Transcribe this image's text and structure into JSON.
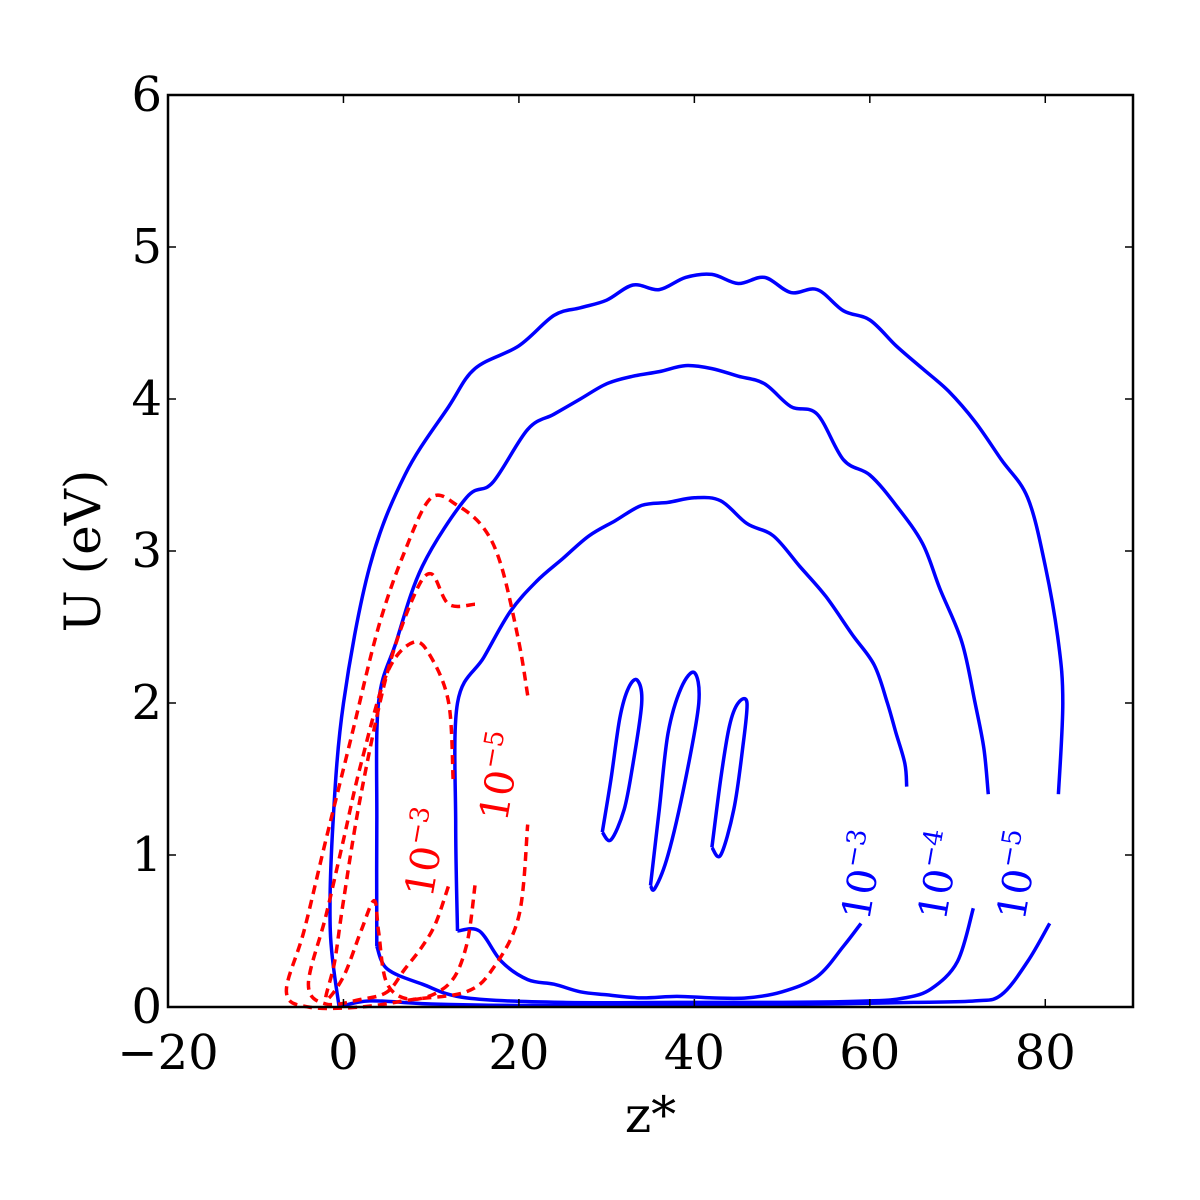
{
  "chart_data": {
    "type": "contour",
    "xlabel": "z*",
    "ylabel": "U (eV)",
    "xlim": [
      -20,
      90
    ],
    "ylim": [
      0,
      6
    ],
    "x_ticks": [
      -20,
      0,
      20,
      40,
      60,
      80
    ],
    "y_ticks": [
      0,
      1,
      2,
      3,
      4,
      5,
      6
    ],
    "x_tick_labels": [
      "−20",
      "0",
      "20",
      "40",
      "60",
      "80"
    ],
    "y_tick_labels": [
      "0",
      "1",
      "2",
      "3",
      "4",
      "5",
      "6"
    ],
    "colors": {
      "solid": "#0000ff",
      "dashed": "#ff0000"
    },
    "grid": false,
    "series": [
      {
        "name": "10^-5",
        "style": "solid",
        "color": "#0000ff",
        "label": {
          "base": "10",
          "exp": "−5",
          "x": 78.5,
          "y": 0.85
        },
        "points": [
          [
            -0.5,
            0
          ],
          [
            -1.5,
            0.5
          ],
          [
            -1.2,
            1.2
          ],
          [
            0,
            2
          ],
          [
            3,
            2.9
          ],
          [
            7,
            3.5
          ],
          [
            12,
            3.95
          ],
          [
            15,
            4.2
          ],
          [
            20,
            4.35
          ],
          [
            24,
            4.55
          ],
          [
            27,
            4.6
          ],
          [
            30,
            4.65
          ],
          [
            33,
            4.75
          ],
          [
            36,
            4.72
          ],
          [
            39,
            4.8
          ],
          [
            42,
            4.82
          ],
          [
            45,
            4.76
          ],
          [
            48,
            4.8
          ],
          [
            51,
            4.7
          ],
          [
            54,
            4.72
          ],
          [
            57,
            4.58
          ],
          [
            60,
            4.52
          ],
          [
            63,
            4.35
          ],
          [
            66,
            4.2
          ],
          [
            69,
            4.05
          ],
          [
            72,
            3.85
          ],
          [
            75,
            3.6
          ],
          [
            78,
            3.35
          ],
          [
            80,
            2.9
          ],
          [
            81.5,
            2.4
          ],
          [
            82,
            2
          ],
          [
            81.5,
            1.4
          ]
        ]
      },
      {
        "name": "10^-5 (lower)",
        "style": "solid",
        "color": "#0000ff",
        "points": [
          [
            80.5,
            0.55
          ],
          [
            78,
            0.3
          ],
          [
            75,
            0.08
          ],
          [
            72,
            0.04
          ],
          [
            65,
            0.03
          ],
          [
            55,
            0.02
          ],
          [
            40,
            0.01
          ],
          [
            20,
            0.01
          ],
          [
            10,
            0.02
          ],
          [
            3,
            0.04
          ],
          [
            -0.5,
            0
          ]
        ]
      },
      {
        "name": "10^-4",
        "style": "solid",
        "color": "#0000ff",
        "label": {
          "base": "10",
          "exp": "−4",
          "x": 69.5,
          "y": 0.85
        },
        "points": [
          [
            3.8,
            0.4
          ],
          [
            3.8,
            1.2
          ],
          [
            4,
            2
          ],
          [
            6,
            2.4
          ],
          [
            9,
            2.9
          ],
          [
            14,
            3.35
          ],
          [
            17,
            3.45
          ],
          [
            21,
            3.8
          ],
          [
            24,
            3.9
          ],
          [
            27,
            4
          ],
          [
            30,
            4.1
          ],
          [
            33,
            4.15
          ],
          [
            36,
            4.18
          ],
          [
            39,
            4.22
          ],
          [
            42,
            4.2
          ],
          [
            45,
            4.15
          ],
          [
            48,
            4.1
          ],
          [
            51,
            3.95
          ],
          [
            54,
            3.9
          ],
          [
            57,
            3.6
          ],
          [
            60,
            3.5
          ],
          [
            63,
            3.3
          ],
          [
            66,
            3.05
          ],
          [
            68,
            2.75
          ],
          [
            70.5,
            2.4
          ],
          [
            72,
            2
          ],
          [
            73,
            1.7
          ],
          [
            73.5,
            1.4
          ]
        ]
      },
      {
        "name": "10^-4 (lower)",
        "style": "solid",
        "color": "#0000ff",
        "points": [
          [
            71.8,
            0.65
          ],
          [
            70,
            0.3
          ],
          [
            67,
            0.12
          ],
          [
            64,
            0.06
          ],
          [
            60,
            0.04
          ],
          [
            50,
            0.03
          ],
          [
            38,
            0.03
          ],
          [
            25,
            0.03
          ],
          [
            14,
            0.06
          ],
          [
            9,
            0.15
          ],
          [
            5,
            0.25
          ],
          [
            3.8,
            0.4
          ]
        ]
      },
      {
        "name": "10^-3",
        "style": "solid",
        "color": "#0000ff",
        "label": {
          "base": "10",
          "exp": "−3",
          "x": 60.8,
          "y": 0.85
        },
        "points": [
          [
            13,
            0.5
          ],
          [
            12.8,
            1.2
          ],
          [
            13,
            2
          ],
          [
            16,
            2.3
          ],
          [
            19,
            2.6
          ],
          [
            22,
            2.8
          ],
          [
            25,
            2.95
          ],
          [
            28,
            3.1
          ],
          [
            31,
            3.2
          ],
          [
            34,
            3.3
          ],
          [
            37,
            3.32
          ],
          [
            40,
            3.35
          ],
          [
            43,
            3.33
          ],
          [
            46,
            3.18
          ],
          [
            49,
            3.1
          ],
          [
            52,
            2.9
          ],
          [
            55,
            2.7
          ],
          [
            58,
            2.45
          ],
          [
            60.5,
            2.25
          ],
          [
            62,
            2
          ],
          [
            63,
            1.8
          ],
          [
            64,
            1.6
          ],
          [
            64.2,
            1.45
          ]
        ]
      },
      {
        "name": "10^-3 (lower)",
        "style": "solid",
        "color": "#0000ff",
        "points": [
          [
            59,
            0.55
          ],
          [
            57,
            0.4
          ],
          [
            54,
            0.2
          ],
          [
            50,
            0.1
          ],
          [
            46,
            0.06
          ],
          [
            42,
            0.06
          ],
          [
            38,
            0.07
          ],
          [
            34,
            0.06
          ],
          [
            30,
            0.08
          ],
          [
            27,
            0.1
          ],
          [
            24,
            0.15
          ],
          [
            21,
            0.18
          ],
          [
            18,
            0.3
          ],
          [
            15.5,
            0.5
          ],
          [
            13,
            0.5
          ]
        ]
      },
      {
        "name": "inner-1",
        "style": "solid",
        "color": "#0000ff",
        "points": [
          [
            29.5,
            1.15
          ],
          [
            30.5,
            1.5
          ],
          [
            31.5,
            1.9
          ],
          [
            32.5,
            2.1
          ],
          [
            33.5,
            2.15
          ],
          [
            34,
            2
          ],
          [
            33,
            1.6
          ],
          [
            32,
            1.3
          ],
          [
            30.5,
            1.1
          ],
          [
            29.5,
            1.15
          ]
        ]
      },
      {
        "name": "inner-2",
        "style": "solid",
        "color": "#0000ff",
        "points": [
          [
            35,
            0.8
          ],
          [
            36,
            1.3
          ],
          [
            37,
            1.8
          ],
          [
            38.5,
            2.1
          ],
          [
            40,
            2.2
          ],
          [
            40.5,
            2
          ],
          [
            39,
            1.5
          ],
          [
            37,
            1.0
          ],
          [
            35.5,
            0.78
          ],
          [
            35,
            0.8
          ]
        ]
      },
      {
        "name": "inner-3",
        "style": "solid",
        "color": "#0000ff",
        "points": [
          [
            42,
            1.05
          ],
          [
            43,
            1.5
          ],
          [
            44,
            1.85
          ],
          [
            45,
            2.0
          ],
          [
            46,
            2.0
          ],
          [
            45.5,
            1.7
          ],
          [
            44.5,
            1.3
          ],
          [
            43,
            1.0
          ],
          [
            42,
            1.05
          ]
        ]
      },
      {
        "name": "red 10^-5",
        "style": "dashed",
        "color": "#ff0000",
        "label": {
          "base": "10",
          "exp": "−5",
          "x": 19.5,
          "y": 1.5
        },
        "points": [
          [
            21,
            2.05
          ],
          [
            20,
            2.4
          ],
          [
            18,
            2.9
          ],
          [
            16,
            3.15
          ],
          [
            13,
            3.3
          ],
          [
            10,
            3.35
          ],
          [
            7,
            3.0
          ],
          [
            4,
            2.5
          ],
          [
            1,
            1.8
          ],
          [
            -2,
            1.1
          ],
          [
            -4.5,
            0.5
          ],
          [
            -6.5,
            0.1
          ],
          [
            -4,
            0
          ],
          [
            2,
            0.0
          ],
          [
            8,
            0.05
          ],
          [
            14,
            0.1
          ],
          [
            17,
            0.25
          ],
          [
            20,
            0.6
          ],
          [
            21,
            1.2
          ]
        ]
      },
      {
        "name": "red 10^-3",
        "style": "dashed",
        "color": "#ff0000",
        "label": {
          "base": "10",
          "exp": "−3",
          "x": 11,
          "y": 1.0
        },
        "points": [
          [
            12.5,
            1.5
          ],
          [
            12,
            2
          ],
          [
            10,
            2.3
          ],
          [
            8,
            2.4
          ],
          [
            5,
            2.2
          ],
          [
            2,
            1.6
          ],
          [
            0,
            1.1
          ],
          [
            -2,
            0.6
          ],
          [
            -4,
            0.15
          ],
          [
            -2,
            0.02
          ],
          [
            2,
            0.05
          ],
          [
            5,
            0.1
          ],
          [
            7,
            0.25
          ],
          [
            9,
            0.4
          ],
          [
            10.5,
            0.55
          ],
          [
            12,
            0.8
          ]
        ]
      },
      {
        "name": "red mid",
        "style": "dashed",
        "color": "#ff0000",
        "points": [
          [
            15,
            2.65
          ],
          [
            12,
            2.65
          ],
          [
            10,
            2.85
          ],
          [
            8,
            2.7
          ],
          [
            5,
            2.2
          ],
          [
            2,
            1.4
          ],
          [
            0,
            0.7
          ],
          [
            -1,
            0.3
          ],
          [
            -2,
            0.05
          ],
          [
            0,
            0.2
          ],
          [
            2,
            0.5
          ],
          [
            3.5,
            0.7
          ],
          [
            4,
            0.5
          ],
          [
            5,
            0.15
          ],
          [
            8,
            0.05
          ],
          [
            12,
            0.15
          ],
          [
            14,
            0.4
          ],
          [
            15,
            0.8
          ]
        ]
      }
    ]
  }
}
